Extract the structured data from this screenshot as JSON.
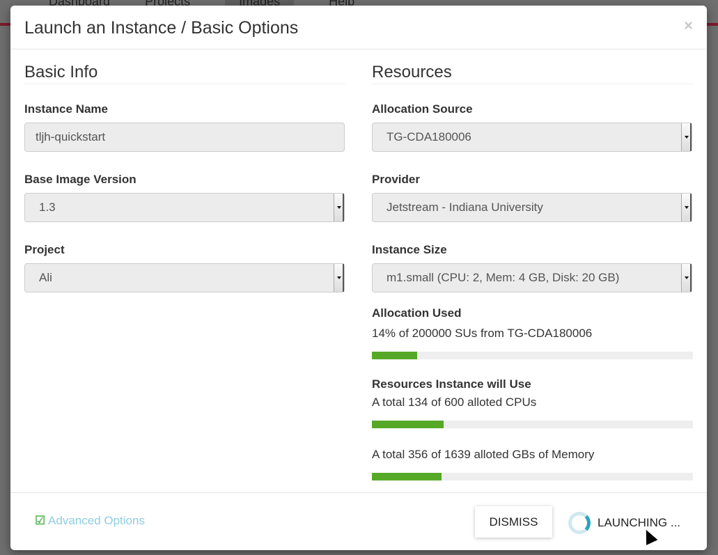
{
  "background": {
    "nav": [
      "Dashboard",
      "Projects",
      "Images",
      "Help"
    ]
  },
  "modal": {
    "title": "Launch an Instance / Basic Options",
    "close": "×"
  },
  "basic_info": {
    "heading": "Basic Info",
    "instance_name": {
      "label": "Instance Name",
      "value": "tljh-quickstart"
    },
    "base_image_version": {
      "label": "Base Image Version",
      "value": "1.3"
    },
    "project": {
      "label": "Project",
      "value": "Ali"
    }
  },
  "resources": {
    "heading": "Resources",
    "allocation_source": {
      "label": "Allocation Source",
      "value": "TG-CDA180006"
    },
    "provider": {
      "label": "Provider",
      "value": "Jetstream - Indiana University"
    },
    "instance_size": {
      "label": "Instance Size",
      "value": "m1.small (CPU: 2, Mem: 4 GB, Disk: 20 GB)"
    },
    "allocation_used": {
      "label": "Allocation Used",
      "text": "14% of 200000 SUs from TG-CDA180006",
      "percent": 14
    },
    "will_use": {
      "label": "Resources Instance will Use",
      "cpus": {
        "text": "A total 134 of 600 alloted CPUs",
        "percent": 22.3
      },
      "memory": {
        "text": "A total 356 of 1639 alloted GBs of Memory",
        "percent": 21.7
      }
    }
  },
  "footer": {
    "advanced": "Advanced Options",
    "dismiss": "DISMISS",
    "launching": "LAUNCHING ..."
  },
  "colors": {
    "progress": "#55a927",
    "link": "#8fcde0",
    "spinner": "#2aa3bd"
  }
}
